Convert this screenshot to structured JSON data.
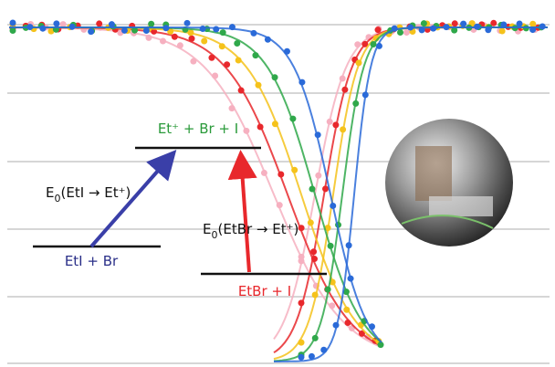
{
  "levels": {
    "top": "Et⁺ + Br + I",
    "left": "EtI + Br",
    "right": "EtBr + I"
  },
  "arrows": {
    "left": {
      "symbol": "E",
      "subscript": "0",
      "body": "(EtI → Et⁺)"
    },
    "right": {
      "symbol": "E",
      "subscript": "0",
      "body": "(EtBr → Et⁺)"
    }
  }
}
